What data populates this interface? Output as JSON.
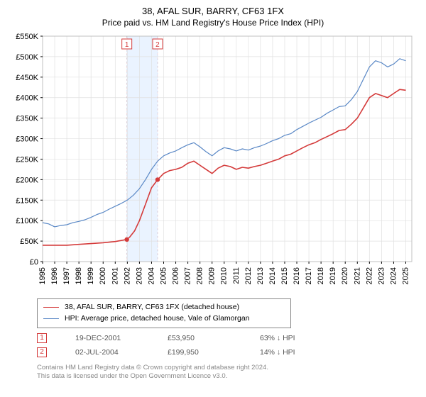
{
  "title_line1": "38, AFAL SUR, BARRY, CF63 1FX",
  "title_line2": "Price paid vs. HM Land Registry's House Price Index (HPI)",
  "chart": {
    "type": "line",
    "background_color": "#ffffff",
    "plot_border_color": "#c0c0c0",
    "grid_color": "#e0e0e0",
    "tick_color": "#000000",
    "axis_font_size": 11,
    "x": {
      "min": 1995,
      "max": 2025.5,
      "ticks": [
        1995,
        1996,
        1997,
        1998,
        1999,
        2000,
        2001,
        2002,
        2003,
        2004,
        2005,
        2006,
        2007,
        2008,
        2009,
        2010,
        2011,
        2012,
        2013,
        2014,
        2015,
        2016,
        2017,
        2018,
        2019,
        2020,
        2021,
        2022,
        2023,
        2024,
        2025
      ]
    },
    "y": {
      "min": 0,
      "max": 550000,
      "ticks": [
        0,
        50000,
        100000,
        150000,
        200000,
        250000,
        300000,
        350000,
        400000,
        450000,
        500000,
        550000
      ],
      "tick_labels": [
        "£0",
        "£50K",
        "£100K",
        "£150K",
        "£200K",
        "£250K",
        "£300K",
        "£350K",
        "£400K",
        "£450K",
        "£500K",
        "£550K"
      ]
    },
    "shading_band": {
      "x_start": 2001.96,
      "x_end": 2004.5,
      "fill": "#eaf3ff",
      "border": "#c8dff6"
    },
    "sale_markers": [
      {
        "index": "1",
        "x": 2001.96,
        "y": 53950,
        "badge_y": 540000,
        "border_color": "#d43a3a"
      },
      {
        "index": "2",
        "x": 2004.5,
        "y": 199950,
        "badge_y": 540000,
        "border_color": "#d43a3a"
      }
    ],
    "series": [
      {
        "name": "price_paid",
        "label": "38, AFAL SUR, BARRY, CF63 1FX (detached house)",
        "color": "#d43a3a",
        "width": 1.6,
        "points": [
          [
            1995,
            40000
          ],
          [
            1996,
            40000
          ],
          [
            1997,
            40000
          ],
          [
            1998,
            42000
          ],
          [
            1999,
            44000
          ],
          [
            2000,
            46000
          ],
          [
            2001,
            49000
          ],
          [
            2001.96,
            53950
          ],
          [
            2002.2,
            60000
          ],
          [
            2002.6,
            75000
          ],
          [
            2003,
            100000
          ],
          [
            2003.5,
            140000
          ],
          [
            2004,
            180000
          ],
          [
            2004.5,
            199950
          ],
          [
            2005,
            215000
          ],
          [
            2005.5,
            222000
          ],
          [
            2006,
            225000
          ],
          [
            2006.5,
            230000
          ],
          [
            2007,
            240000
          ],
          [
            2007.5,
            245000
          ],
          [
            2008,
            235000
          ],
          [
            2008.5,
            225000
          ],
          [
            2009,
            215000
          ],
          [
            2009.5,
            228000
          ],
          [
            2010,
            235000
          ],
          [
            2010.5,
            232000
          ],
          [
            2011,
            225000
          ],
          [
            2011.5,
            230000
          ],
          [
            2012,
            228000
          ],
          [
            2012.5,
            232000
          ],
          [
            2013,
            235000
          ],
          [
            2013.5,
            240000
          ],
          [
            2014,
            245000
          ],
          [
            2014.5,
            250000
          ],
          [
            2015,
            258000
          ],
          [
            2015.5,
            262000
          ],
          [
            2016,
            270000
          ],
          [
            2016.5,
            278000
          ],
          [
            2017,
            285000
          ],
          [
            2017.5,
            290000
          ],
          [
            2018,
            298000
          ],
          [
            2018.5,
            305000
          ],
          [
            2019,
            312000
          ],
          [
            2019.5,
            320000
          ],
          [
            2020,
            322000
          ],
          [
            2020.5,
            335000
          ],
          [
            2021,
            350000
          ],
          [
            2021.5,
            375000
          ],
          [
            2022,
            400000
          ],
          [
            2022.5,
            410000
          ],
          [
            2023,
            405000
          ],
          [
            2023.5,
            400000
          ],
          [
            2024,
            410000
          ],
          [
            2024.5,
            420000
          ],
          [
            2025,
            418000
          ]
        ]
      },
      {
        "name": "hpi",
        "label": "HPI: Average price, detached house, Vale of Glamorgan",
        "color": "#5a88c6",
        "width": 1.2,
        "points": [
          [
            1995,
            95000
          ],
          [
            1995.5,
            92000
          ],
          [
            1996,
            85000
          ],
          [
            1996.5,
            88000
          ],
          [
            1997,
            90000
          ],
          [
            1997.5,
            95000
          ],
          [
            1998,
            98000
          ],
          [
            1998.5,
            102000
          ],
          [
            1999,
            108000
          ],
          [
            1999.5,
            115000
          ],
          [
            2000,
            120000
          ],
          [
            2000.5,
            128000
          ],
          [
            2001,
            135000
          ],
          [
            2001.5,
            142000
          ],
          [
            2002,
            150000
          ],
          [
            2002.5,
            162000
          ],
          [
            2003,
            178000
          ],
          [
            2003.5,
            200000
          ],
          [
            2004,
            225000
          ],
          [
            2004.5,
            245000
          ],
          [
            2005,
            258000
          ],
          [
            2005.5,
            265000
          ],
          [
            2006,
            270000
          ],
          [
            2006.5,
            278000
          ],
          [
            2007,
            285000
          ],
          [
            2007.5,
            290000
          ],
          [
            2008,
            280000
          ],
          [
            2008.5,
            268000
          ],
          [
            2009,
            258000
          ],
          [
            2009.5,
            270000
          ],
          [
            2010,
            278000
          ],
          [
            2010.5,
            275000
          ],
          [
            2011,
            270000
          ],
          [
            2011.5,
            275000
          ],
          [
            2012,
            272000
          ],
          [
            2012.5,
            278000
          ],
          [
            2013,
            282000
          ],
          [
            2013.5,
            288000
          ],
          [
            2014,
            295000
          ],
          [
            2014.5,
            300000
          ],
          [
            2015,
            308000
          ],
          [
            2015.5,
            312000
          ],
          [
            2016,
            322000
          ],
          [
            2016.5,
            330000
          ],
          [
            2017,
            338000
          ],
          [
            2017.5,
            345000
          ],
          [
            2018,
            352000
          ],
          [
            2018.5,
            362000
          ],
          [
            2019,
            370000
          ],
          [
            2019.5,
            378000
          ],
          [
            2020,
            380000
          ],
          [
            2020.5,
            395000
          ],
          [
            2021,
            415000
          ],
          [
            2021.5,
            445000
          ],
          [
            2022,
            475000
          ],
          [
            2022.5,
            490000
          ],
          [
            2023,
            485000
          ],
          [
            2023.5,
            475000
          ],
          [
            2024,
            482000
          ],
          [
            2024.5,
            495000
          ],
          [
            2025,
            490000
          ]
        ]
      }
    ]
  },
  "legend": [
    {
      "color": "#d43a3a",
      "width": 1.6,
      "text": "38, AFAL SUR, BARRY, CF63 1FX (detached house)"
    },
    {
      "color": "#5a88c6",
      "width": 1.2,
      "text": "HPI: Average price, detached house, Vale of Glamorgan"
    }
  ],
  "sales": [
    {
      "index": "1",
      "date": "19-DEC-2001",
      "price": "£53,950",
      "vs_hpi": "63% ↓ HPI",
      "border_color": "#d43a3a"
    },
    {
      "index": "2",
      "date": "02-JUL-2004",
      "price": "£199,950",
      "vs_hpi": "14% ↓ HPI",
      "border_color": "#d43a3a"
    }
  ],
  "footer_line1": "Contains HM Land Registry data © Crown copyright and database right 2024.",
  "footer_line2": "This data is licensed under the Open Government Licence v3.0."
}
